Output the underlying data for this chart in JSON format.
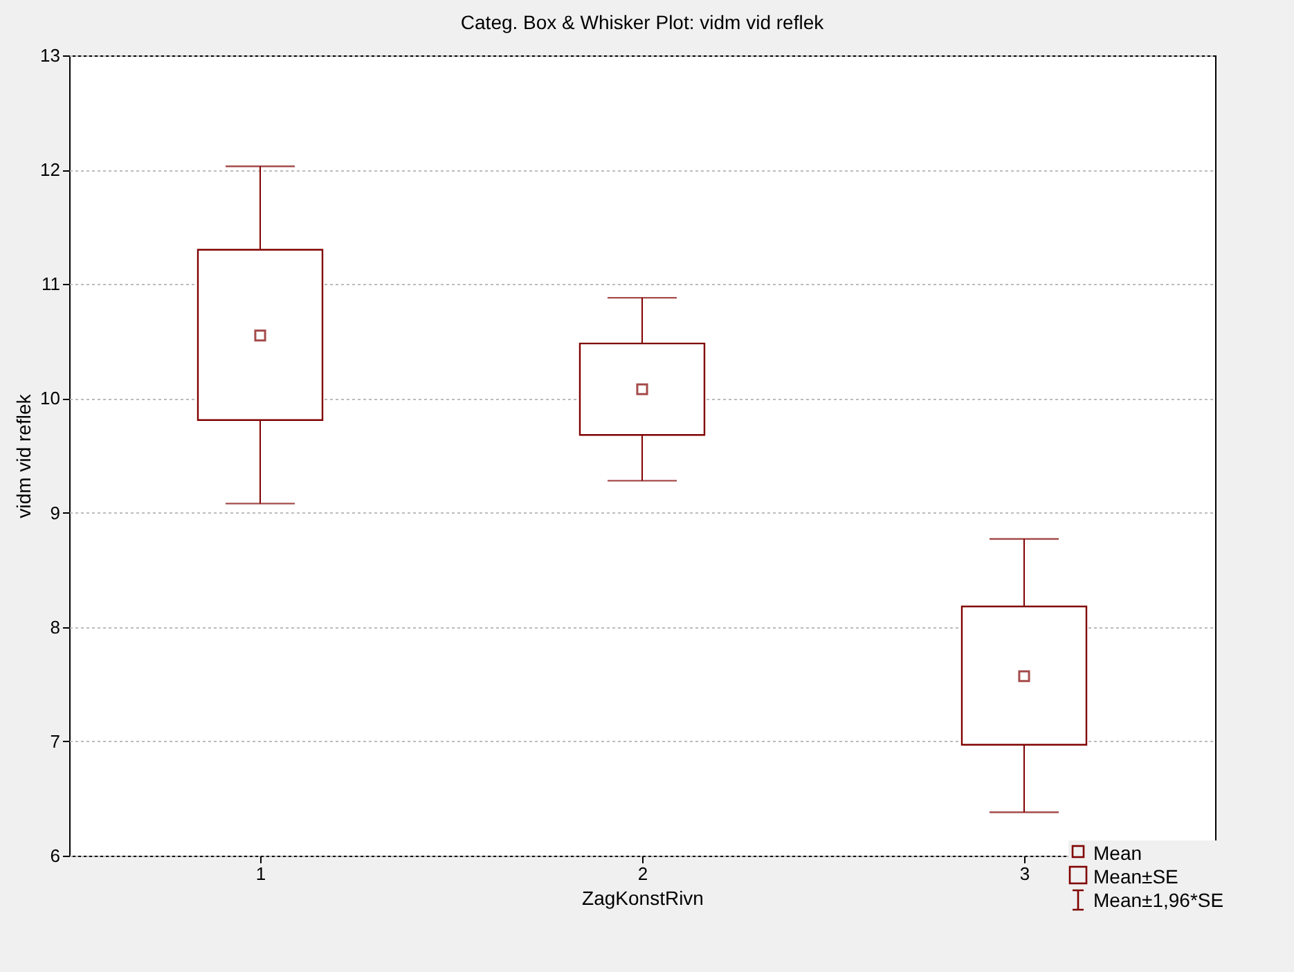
{
  "chart_data": {
    "type": "box",
    "title": "Categ. Box & Whisker Plot: vidm vid reflek",
    "xlabel": "ZagKonstRivn",
    "ylabel": "vidm vid reflek",
    "categories": [
      "1",
      "2",
      "3"
    ],
    "series": [
      {
        "color": "#800000",
        "boxes": [
          {
            "low": 9.08,
            "q1": 9.81,
            "median": 10.55,
            "q3": 11.3,
            "high": 12.03
          },
          {
            "low": 9.28,
            "q1": 9.68,
            "median": 10.08,
            "q3": 10.48,
            "high": 10.88
          },
          {
            "low": 6.38,
            "q1": 6.97,
            "median": 7.57,
            "q3": 8.18,
            "high": 8.77
          }
        ]
      }
    ],
    "ylim": [
      6,
      13
    ],
    "yticks": [
      6,
      7,
      8,
      9,
      10,
      11,
      12,
      13
    ],
    "grid": "y",
    "annotations": [
      "Mean",
      "Mean±SE",
      "Mean±1,96*SE"
    ]
  }
}
